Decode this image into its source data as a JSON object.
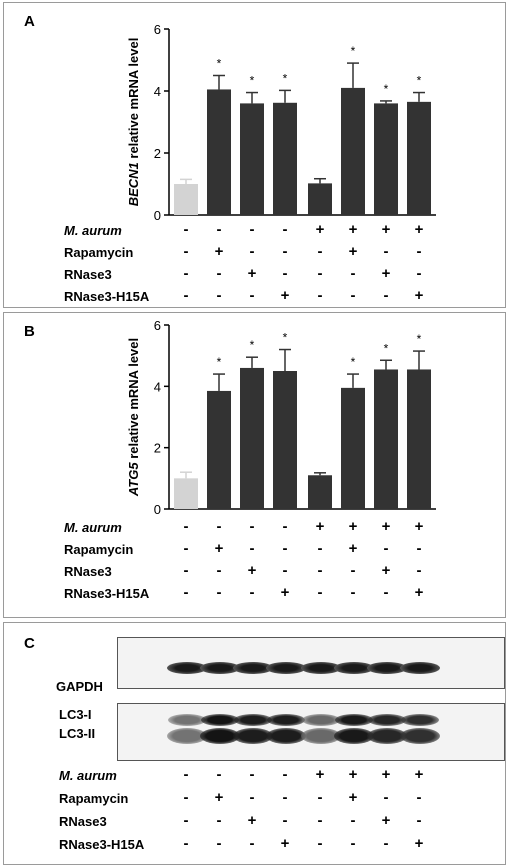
{
  "panels": {
    "a_label": "A",
    "b_label": "B",
    "c_label": "C"
  },
  "chart_data": [
    {
      "type": "bar",
      "panel": "A",
      "ylabel_gene": "BECN1",
      "ylabel_rest": " relative mRNA level",
      "ylim": [
        0,
        6
      ],
      "yticks": [
        "0",
        "2",
        "4",
        "6"
      ],
      "values": [
        1.0,
        4.05,
        3.6,
        3.62,
        1.02,
        4.1,
        3.6,
        3.65
      ],
      "errors": [
        0.15,
        0.45,
        0.35,
        0.4,
        0.15,
        0.8,
        0.08,
        0.3
      ],
      "colors": [
        "#d3d3d3",
        "#333333",
        "#333333",
        "#333333",
        "#333333",
        "#333333",
        "#333333",
        "#333333"
      ],
      "significance": [
        "",
        "*",
        "*",
        "*",
        "",
        "*",
        "*",
        "*"
      ]
    },
    {
      "type": "bar",
      "panel": "B",
      "ylabel_gene": "ATG5",
      "ylabel_rest": " relative mRNA level",
      "ylim": [
        0,
        6
      ],
      "yticks": [
        "0",
        "2",
        "4",
        "6"
      ],
      "values": [
        1.0,
        3.85,
        4.6,
        4.5,
        1.1,
        3.95,
        4.55,
        4.55
      ],
      "errors": [
        0.2,
        0.55,
        0.35,
        0.7,
        0.08,
        0.45,
        0.3,
        0.6
      ],
      "colors": [
        "#d3d3d3",
        "#333333",
        "#333333",
        "#333333",
        "#333333",
        "#333333",
        "#333333",
        "#333333"
      ],
      "significance": [
        "",
        "*",
        "*",
        "*",
        "",
        "*",
        "*",
        "*"
      ]
    }
  ],
  "treatments": {
    "labels": [
      "M. aurum",
      "Rapamycin",
      "RNase3",
      "RNase3-H15A"
    ],
    "rows": [
      [
        "-",
        "-",
        "-",
        "-",
        "+",
        "+",
        "+",
        "+"
      ],
      [
        "-",
        "+",
        "-",
        "-",
        "-",
        "+",
        "-",
        "-"
      ],
      [
        "-",
        "-",
        "+",
        "-",
        "-",
        "-",
        "+",
        "-"
      ],
      [
        "-",
        "-",
        "-",
        "+",
        "-",
        "-",
        "-",
        "+"
      ]
    ]
  },
  "blot": {
    "gapdh_label": "GAPDH",
    "lc3i_label": "LC3-I",
    "lc3ii_label": "LC3-II",
    "lc3_intensity": [
      0.45,
      0.95,
      0.9,
      0.9,
      0.5,
      0.92,
      0.85,
      0.8
    ]
  }
}
